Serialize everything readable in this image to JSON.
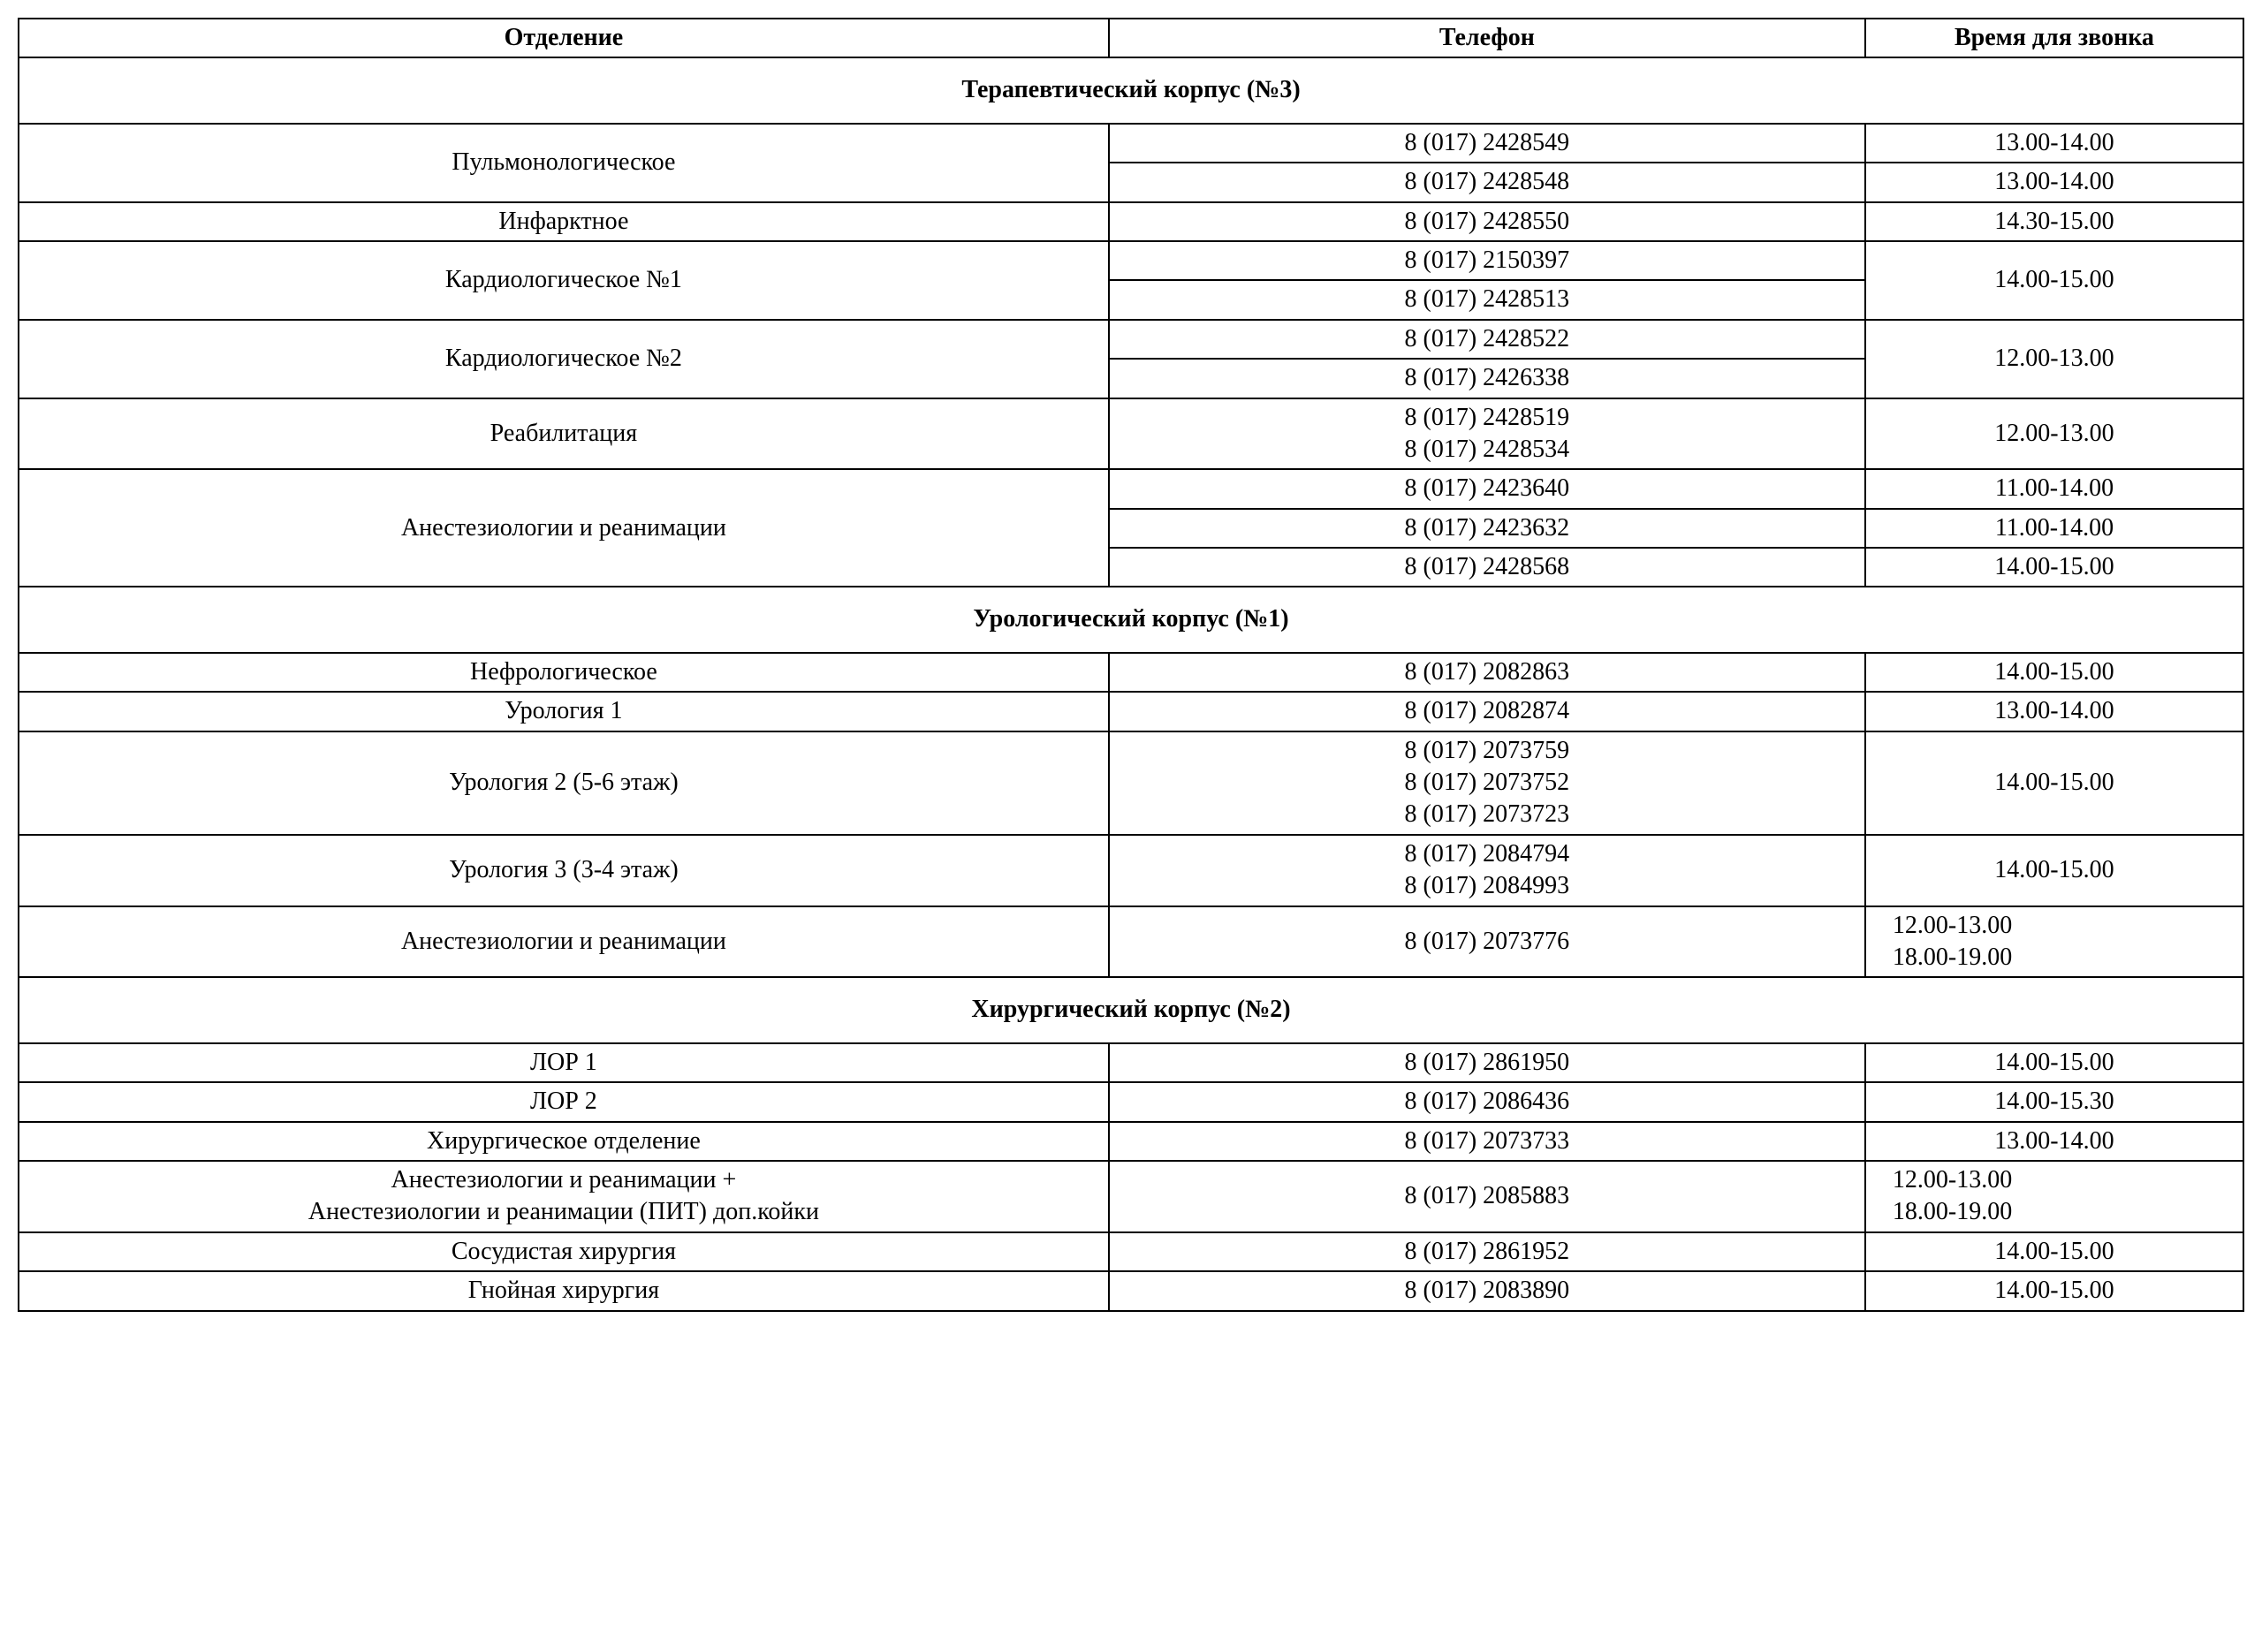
{
  "table": {
    "columns": {
      "department": "Отделение",
      "phone": "Телефон",
      "time": "Время для звонка"
    },
    "column_widths_pct": [
      49,
      34,
      17
    ],
    "border_color": "#000000",
    "background_color": "#ffffff",
    "text_color": "#000000",
    "font_family": "Times New Roman",
    "base_fontsize_pt": 21,
    "header_font_weight": "bold",
    "sections": [
      {
        "title": "Терапевтический корпус (№3)",
        "rows": [
          {
            "dept": "Пульмонологическое",
            "dept_rowspan": 2,
            "phone": "8 (017) 2428549",
            "time": "13.00-14.00"
          },
          {
            "phone": "8 (017) 2428548",
            "time": "13.00-14.00"
          },
          {
            "dept": "Инфарктное",
            "phone": "8 (017) 2428550",
            "time": "14.30-15.00"
          },
          {
            "dept": "Кардиологическое №1",
            "dept_rowspan": 2,
            "phone": "8 (017) 2150397",
            "time": "14.00-15.00",
            "time_rowspan": 2
          },
          {
            "phone": "8 (017) 2428513"
          },
          {
            "dept": "Кардиологическое №2",
            "dept_rowspan": 2,
            "phone": "8 (017) 2428522",
            "time": "12.00-13.00",
            "time_rowspan": 2
          },
          {
            "phone": "8 (017) 2426338"
          },
          {
            "dept": "Реабилитация",
            "phone": "8 (017) 2428519\n8 (017) 2428534",
            "phone_multiline": true,
            "time": "12.00-13.00"
          },
          {
            "dept": "Анестезиологии и реанимации",
            "dept_rowspan": 3,
            "phone": "8 (017) 2423640",
            "time": "11.00-14.00"
          },
          {
            "phone": "8 (017) 2423632",
            "time": "11.00-14.00"
          },
          {
            "phone": "8 (017) 2428568",
            "time": "14.00-15.00"
          }
        ]
      },
      {
        "title": "Урологический корпус (№1)",
        "rows": [
          {
            "dept": "Нефрологическое",
            "phone": "8 (017) 2082863",
            "time": "14.00-15.00"
          },
          {
            "dept": "Урология 1",
            "phone": "8 (017) 2082874",
            "time": "13.00-14.00"
          },
          {
            "dept": "Урология 2 (5-6 этаж)",
            "phone": "8 (017) 2073759\n8 (017) 2073752\n8 (017) 2073723",
            "phone_multiline": true,
            "time": "14.00-15.00"
          },
          {
            "dept": "Урология 3 (3-4 этаж)",
            "phone": "8 (017) 2084794\n8 (017) 2084993",
            "phone_multiline": true,
            "time": "14.00-15.00"
          },
          {
            "dept": "Анестезиологии и реанимации",
            "phone": "8 (017) 2073776",
            "time": "12.00-13.00\n18.00-19.00",
            "time_multiline": true,
            "time_left": true
          }
        ]
      },
      {
        "title": "Хирургический корпус (№2)",
        "rows": [
          {
            "dept": "ЛОР 1",
            "phone": "8 (017) 2861950",
            "time": "14.00-15.00"
          },
          {
            "dept": "ЛОР 2",
            "phone": "8 (017) 2086436",
            "time": "14.00-15.30"
          },
          {
            "dept": "Хирургическое отделение",
            "phone": "8 (017) 2073733",
            "time": "13.00-14.00"
          },
          {
            "dept": "Анестезиологии и реанимации +\nАнестезиологии и реанимации (ПИТ) доп.койки",
            "dept_multiline": true,
            "phone": "8 (017) 2085883",
            "time": "12.00-13.00\n18.00-19.00",
            "time_multiline": true,
            "time_left": true
          },
          {
            "dept": "Сосудистая хирургия",
            "phone": "8 (017) 2861952",
            "time": "14.00-15.00"
          },
          {
            "dept": "Гнойная хирургия",
            "phone": "8 (017) 2083890",
            "time": "14.00-15.00"
          }
        ]
      }
    ]
  }
}
